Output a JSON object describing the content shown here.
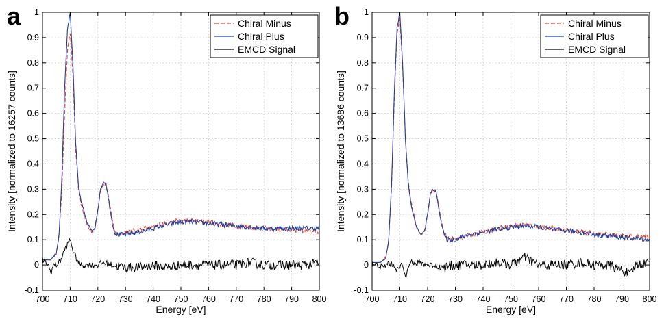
{
  "chart_data": [
    {
      "panel_letter": "a",
      "type": "line",
      "xlabel": "Energy [eV]",
      "ylabel": "Intensity [normalized to 16257 counts]",
      "xlim": [
        700,
        800
      ],
      "ylim": [
        -0.1,
        1
      ],
      "x_ticks": [
        700,
        710,
        720,
        730,
        740,
        750,
        760,
        770,
        780,
        790,
        800
      ],
      "y_ticks": [
        "-0.1",
        "0",
        "0.1",
        "0.2",
        "0.3",
        "0.4",
        "0.5",
        "0.6",
        "0.7",
        "0.8",
        "0.9",
        "1"
      ],
      "grid": true,
      "legend_position": "top-right",
      "series": [
        {
          "name": "Chiral Minus",
          "color": "#e8432c",
          "dash": "dashed",
          "points": [
            [
              700,
              0.02
            ],
            [
              703,
              0.02
            ],
            [
              705,
              0.05
            ],
            [
              706,
              0.12
            ],
            [
              707,
              0.3
            ],
            [
              708,
              0.6
            ],
            [
              709,
              0.85
            ],
            [
              710,
              0.92
            ],
            [
              711,
              0.75
            ],
            [
              712,
              0.45
            ],
            [
              713,
              0.3
            ],
            [
              714,
              0.24
            ],
            [
              715,
              0.2
            ],
            [
              716,
              0.16
            ],
            [
              717,
              0.14
            ],
            [
              718,
              0.13
            ],
            [
              719,
              0.15
            ],
            [
              720,
              0.22
            ],
            [
              721,
              0.3
            ],
            [
              722,
              0.32
            ],
            [
              723,
              0.32
            ],
            [
              724,
              0.26
            ],
            [
              725,
              0.19
            ],
            [
              726,
              0.14
            ],
            [
              727,
              0.12
            ],
            [
              730,
              0.13
            ],
            [
              735,
              0.14
            ],
            [
              740,
              0.15
            ],
            [
              745,
              0.17
            ],
            [
              750,
              0.175
            ],
            [
              755,
              0.175
            ],
            [
              760,
              0.17
            ],
            [
              765,
              0.16
            ],
            [
              770,
              0.155
            ],
            [
              775,
              0.15
            ],
            [
              780,
              0.145
            ],
            [
              785,
              0.14
            ],
            [
              790,
              0.14
            ],
            [
              795,
              0.135
            ],
            [
              800,
              0.13
            ]
          ]
        },
        {
          "name": "Chiral Plus",
          "color": "#1f3f9f",
          "dash": "solid",
          "points": [
            [
              700,
              0.02
            ],
            [
              703,
              0.02
            ],
            [
              705,
              0.05
            ],
            [
              706,
              0.12
            ],
            [
              707,
              0.35
            ],
            [
              708,
              0.7
            ],
            [
              709,
              0.93
            ],
            [
              710,
              1.0
            ],
            [
              711,
              0.8
            ],
            [
              712,
              0.48
            ],
            [
              713,
              0.31
            ],
            [
              714,
              0.25
            ],
            [
              715,
              0.21
            ],
            [
              716,
              0.17
            ],
            [
              717,
              0.15
            ],
            [
              718,
              0.13
            ],
            [
              719,
              0.15
            ],
            [
              720,
              0.22
            ],
            [
              721,
              0.3
            ],
            [
              722,
              0.33
            ],
            [
              723,
              0.32
            ],
            [
              724,
              0.25
            ],
            [
              725,
              0.18
            ],
            [
              726,
              0.13
            ],
            [
              727,
              0.12
            ],
            [
              730,
              0.12
            ],
            [
              735,
              0.13
            ],
            [
              740,
              0.145
            ],
            [
              745,
              0.16
            ],
            [
              750,
              0.17
            ],
            [
              755,
              0.17
            ],
            [
              760,
              0.165
            ],
            [
              765,
              0.16
            ],
            [
              770,
              0.155
            ],
            [
              775,
              0.15
            ],
            [
              780,
              0.145
            ],
            [
              785,
              0.145
            ],
            [
              790,
              0.145
            ],
            [
              795,
              0.145
            ],
            [
              800,
              0.145
            ]
          ]
        },
        {
          "name": "EMCD Signal",
          "color": "#000000",
          "dash": "solid",
          "points": [
            [
              700,
              0.02
            ],
            [
              702,
              0.0
            ],
            [
              703,
              -0.03
            ],
            [
              704,
              0.0
            ],
            [
              705,
              0.0
            ],
            [
              706,
              0.01
            ],
            [
              707,
              0.03
            ],
            [
              708,
              0.06
            ],
            [
              709,
              0.08
            ],
            [
              710,
              0.1
            ],
            [
              711,
              0.06
            ],
            [
              712,
              0.03
            ],
            [
              713,
              0.01
            ],
            [
              714,
              0.0
            ],
            [
              716,
              0.0
            ],
            [
              718,
              0.0
            ],
            [
              720,
              0.0
            ],
            [
              722,
              0.01
            ],
            [
              725,
              0.0
            ],
            [
              730,
              -0.01
            ],
            [
              735,
              -0.01
            ],
            [
              740,
              0.0
            ],
            [
              745,
              -0.01
            ],
            [
              750,
              0.0
            ],
            [
              755,
              0.0
            ],
            [
              760,
              0.0
            ],
            [
              765,
              0.0
            ],
            [
              770,
              0.0
            ],
            [
              775,
              0.01
            ],
            [
              780,
              0.0
            ],
            [
              785,
              0.0
            ],
            [
              790,
              0.0
            ],
            [
              795,
              0.0
            ],
            [
              800,
              0.01
            ]
          ]
        }
      ]
    },
    {
      "panel_letter": "b",
      "type": "line",
      "xlabel": "Energy [eV]",
      "ylabel": "Intensity [normalized to 13686 counts]",
      "xlim": [
        700,
        800
      ],
      "ylim": [
        -0.1,
        1
      ],
      "x_ticks": [
        700,
        710,
        720,
        730,
        740,
        750,
        760,
        770,
        780,
        790,
        800
      ],
      "y_ticks": [
        "-0.1",
        "0",
        "0.1",
        "0.2",
        "0.3",
        "0.4",
        "0.5",
        "0.6",
        "0.7",
        "0.8",
        "0.9",
        "1"
      ],
      "grid": true,
      "legend_position": "top-right",
      "series": [
        {
          "name": "Chiral Minus",
          "color": "#e8432c",
          "dash": "dashed",
          "points": [
            [
              700,
              0.01
            ],
            [
              703,
              0.01
            ],
            [
              705,
              0.03
            ],
            [
              706,
              0.1
            ],
            [
              707,
              0.3
            ],
            [
              708,
              0.65
            ],
            [
              709,
              0.92
            ],
            [
              710,
              0.98
            ],
            [
              711,
              0.78
            ],
            [
              712,
              0.5
            ],
            [
              713,
              0.34
            ],
            [
              714,
              0.25
            ],
            [
              715,
              0.2
            ],
            [
              716,
              0.15
            ],
            [
              717,
              0.13
            ],
            [
              718,
              0.12
            ],
            [
              719,
              0.14
            ],
            [
              720,
              0.2
            ],
            [
              721,
              0.28
            ],
            [
              722,
              0.3
            ],
            [
              723,
              0.29
            ],
            [
              724,
              0.24
            ],
            [
              725,
              0.17
            ],
            [
              726,
              0.12
            ],
            [
              727,
              0.11
            ],
            [
              730,
              0.1
            ],
            [
              735,
              0.12
            ],
            [
              740,
              0.13
            ],
            [
              745,
              0.145
            ],
            [
              750,
              0.155
            ],
            [
              755,
              0.16
            ],
            [
              760,
              0.15
            ],
            [
              765,
              0.145
            ],
            [
              770,
              0.14
            ],
            [
              775,
              0.13
            ],
            [
              780,
              0.125
            ],
            [
              785,
              0.12
            ],
            [
              790,
              0.115
            ],
            [
              795,
              0.11
            ],
            [
              800,
              0.11
            ]
          ]
        },
        {
          "name": "Chiral Plus",
          "color": "#1f3f9f",
          "dash": "solid",
          "points": [
            [
              700,
              0.01
            ],
            [
              703,
              0.01
            ],
            [
              705,
              0.03
            ],
            [
              706,
              0.1
            ],
            [
              707,
              0.32
            ],
            [
              708,
              0.68
            ],
            [
              709,
              0.94
            ],
            [
              710,
              1.0
            ],
            [
              711,
              0.8
            ],
            [
              712,
              0.5
            ],
            [
              713,
              0.33
            ],
            [
              714,
              0.24
            ],
            [
              715,
              0.19
            ],
            [
              716,
              0.15
            ],
            [
              717,
              0.13
            ],
            [
              718,
              0.12
            ],
            [
              719,
              0.14
            ],
            [
              720,
              0.2
            ],
            [
              721,
              0.28
            ],
            [
              722,
              0.3
            ],
            [
              723,
              0.29
            ],
            [
              724,
              0.23
            ],
            [
              725,
              0.16
            ],
            [
              726,
              0.12
            ],
            [
              727,
              0.1
            ],
            [
              730,
              0.1
            ],
            [
              735,
              0.12
            ],
            [
              740,
              0.13
            ],
            [
              745,
              0.14
            ],
            [
              750,
              0.15
            ],
            [
              755,
              0.155
            ],
            [
              760,
              0.15
            ],
            [
              765,
              0.14
            ],
            [
              770,
              0.135
            ],
            [
              775,
              0.13
            ],
            [
              780,
              0.12
            ],
            [
              785,
              0.115
            ],
            [
              790,
              0.11
            ],
            [
              795,
              0.105
            ],
            [
              800,
              0.1
            ]
          ]
        },
        {
          "name": "EMCD Signal",
          "color": "#000000",
          "dash": "solid",
          "points": [
            [
              700,
              0.0
            ],
            [
              702,
              0.0
            ],
            [
              704,
              -0.01
            ],
            [
              705,
              0.0
            ],
            [
              706,
              0.01
            ],
            [
              707,
              0.0
            ],
            [
              708,
              0.0
            ],
            [
              709,
              -0.02
            ],
            [
              710,
              -0.01
            ],
            [
              711,
              0.0
            ],
            [
              712,
              -0.05
            ],
            [
              713,
              0.0
            ],
            [
              714,
              0.02
            ],
            [
              715,
              0.0
            ],
            [
              717,
              0.01
            ],
            [
              720,
              0.0
            ],
            [
              722,
              0.0
            ],
            [
              725,
              -0.01
            ],
            [
              730,
              0.0
            ],
            [
              735,
              0.0
            ],
            [
              740,
              0.0
            ],
            [
              745,
              0.01
            ],
            [
              750,
              0.0
            ],
            [
              755,
              0.03
            ],
            [
              760,
              0.0
            ],
            [
              765,
              0.0
            ],
            [
              770,
              0.0
            ],
            [
              775,
              0.01
            ],
            [
              780,
              0.0
            ],
            [
              785,
              0.0
            ],
            [
              790,
              -0.02
            ],
            [
              793,
              -0.04
            ],
            [
              795,
              0.0
            ],
            [
              800,
              0.01
            ]
          ]
        }
      ]
    }
  ]
}
